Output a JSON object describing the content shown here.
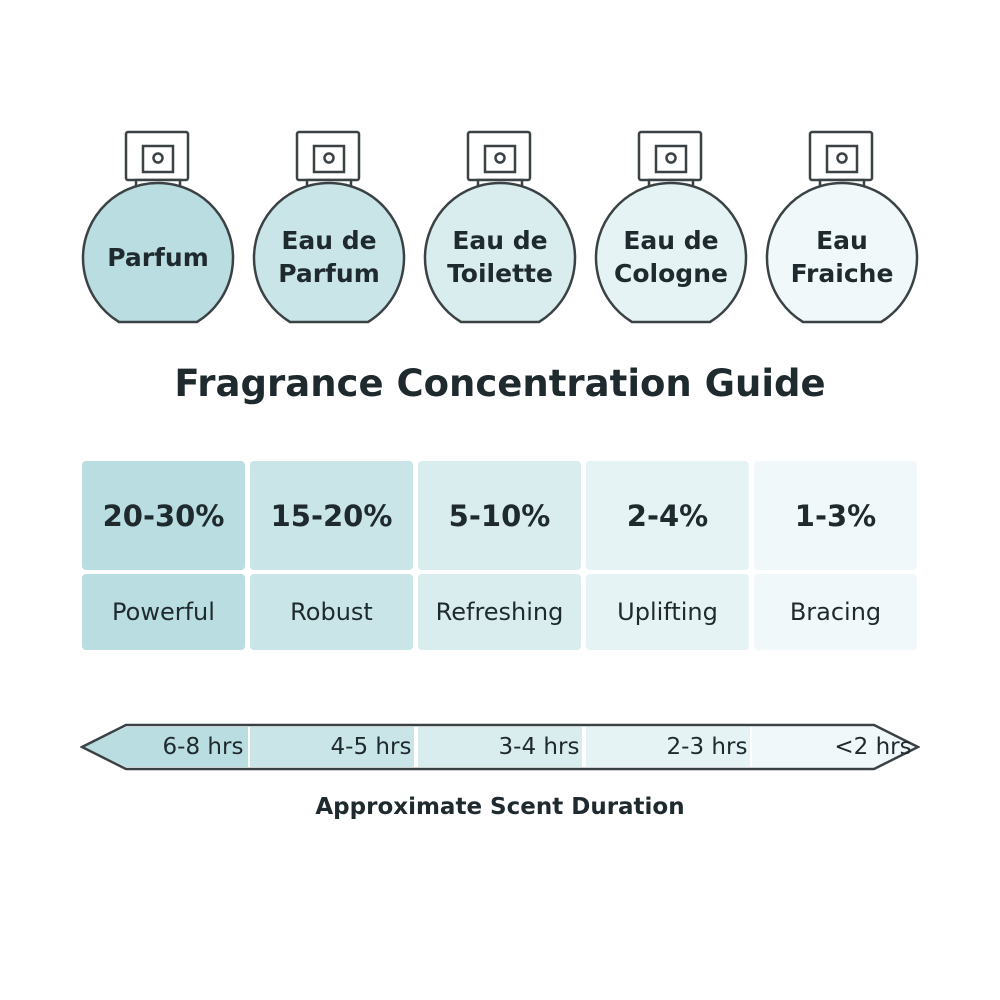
{
  "title": "Fragrance Concentration Guide",
  "duration_caption": "Approximate Scent Duration",
  "colors": {
    "text": "#1f2a2e",
    "outline": "#3b4245",
    "shades": [
      "#b9dde1",
      "#c9e5e8",
      "#d9edef",
      "#e6f3f4",
      "#f1f8f9"
    ]
  },
  "types": [
    {
      "name": "Parfum",
      "concentration": "20-30%",
      "character": "Powerful",
      "duration": "6-8 hrs"
    },
    {
      "name": "Eau de\nParfum",
      "concentration": "15-20%",
      "character": "Robust",
      "duration": "4-5 hrs"
    },
    {
      "name": "Eau de\nToilette",
      "concentration": "5-10%",
      "character": "Refreshing",
      "duration": "3-4 hrs"
    },
    {
      "name": "Eau de\nCologne",
      "concentration": "2-4%",
      "character": "Uplifting",
      "duration": "2-3 hrs"
    },
    {
      "name": "Eau\nFraiche",
      "concentration": "1-3%",
      "character": "Bracing",
      "duration": "<2 hrs"
    }
  ]
}
